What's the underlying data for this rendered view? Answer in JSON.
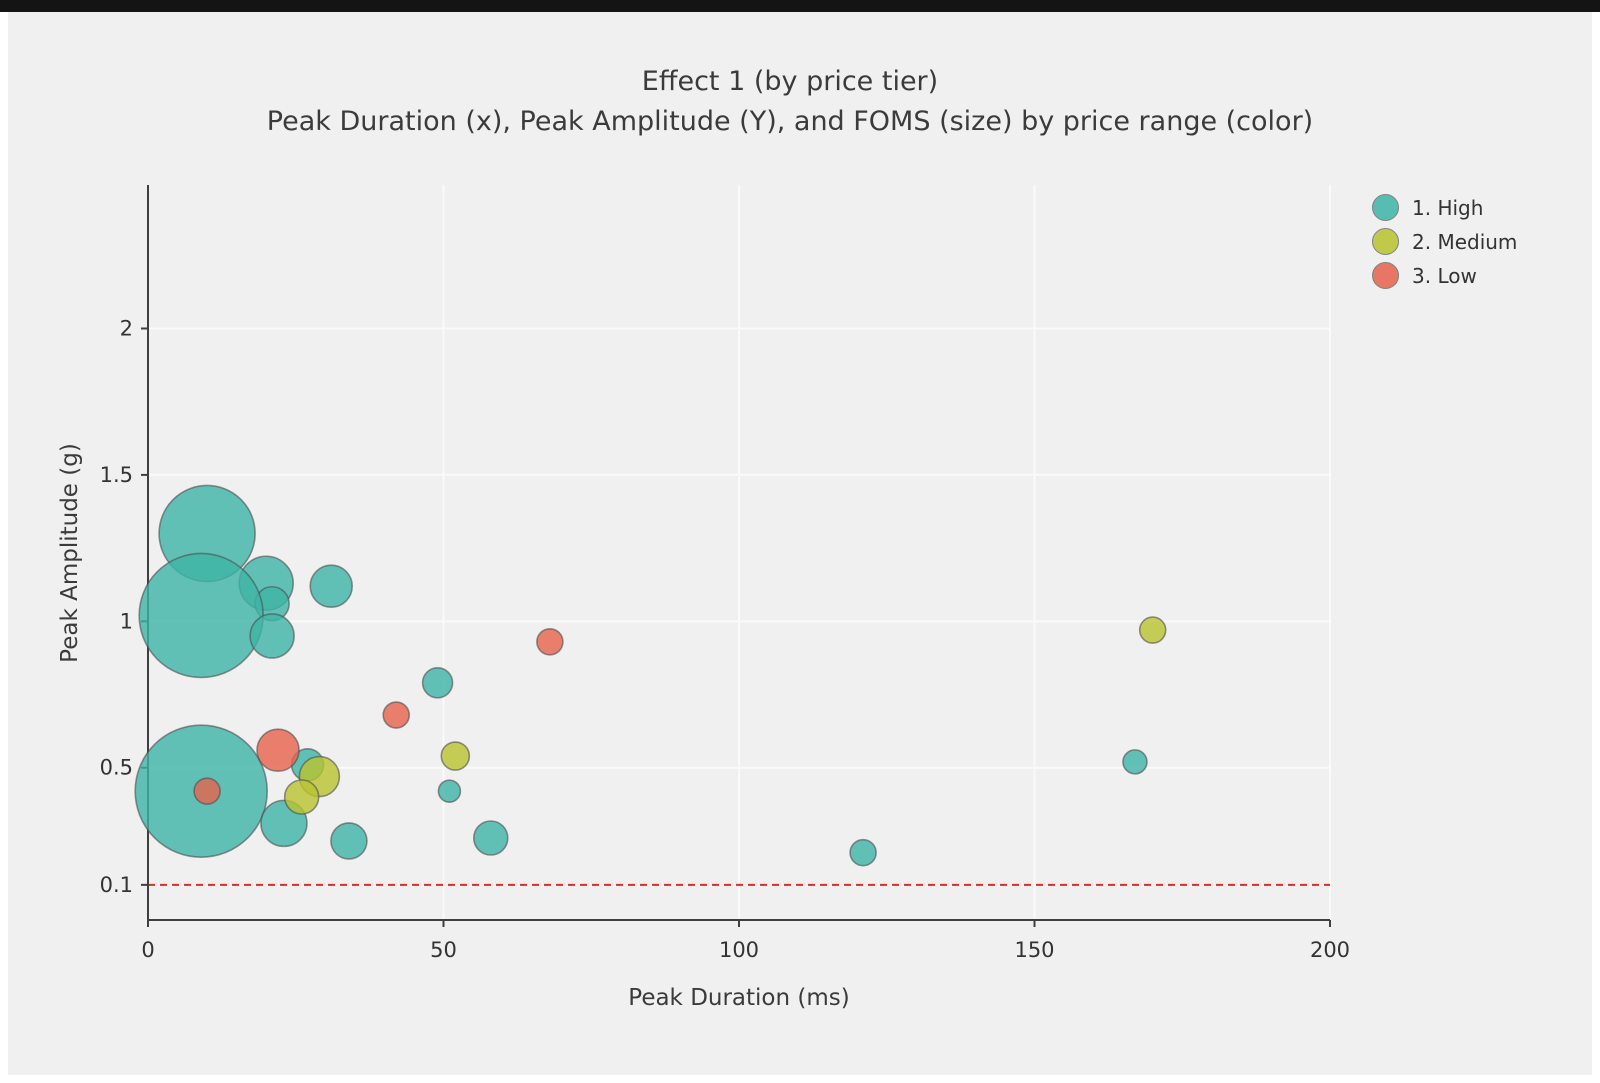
{
  "title": "Effect 1 (by price tier)",
  "subtitle": "Peak Duration (x), Peak Amplitude (Y), and FOMS (size) by price range (color)",
  "colors": {
    "background": "#f0f0f1",
    "grid": "#fafafa",
    "axis": "#3f3f3f",
    "threshold": "#d93025",
    "tier_high": "#3db4a6",
    "tier_medium": "#b9c32f",
    "tier_low": "#e7614c"
  },
  "chart_data": {
    "type": "scatter",
    "title": "Effect 1 (by price tier)",
    "subtitle": "Peak Duration (x), Peak Amplitude (Y), and FOMS (size) by price range (color)",
    "xlabel": "Peak Duration (ms)",
    "ylabel": "Peak Amplitude (g)",
    "xlim": [
      0,
      200
    ],
    "ylim": [
      -0.02,
      2.49
    ],
    "x_ticks": [
      0,
      50,
      100,
      150,
      200
    ],
    "y_ticks": [
      0.1,
      0.5,
      1,
      1.5,
      2
    ],
    "grid": true,
    "legend_position": "top-right",
    "size_encoding": "FOMS",
    "threshold_line": {
      "y": 0.1,
      "color": "#d93025",
      "style": "dashed"
    },
    "series": [
      {
        "name": "1. High",
        "color": "#3db4a6",
        "points": [
          {
            "x": 10,
            "y": 1.3,
            "r": 48
          },
          {
            "x": 20,
            "y": 1.13,
            "r": 27
          },
          {
            "x": 21,
            "y": 1.06,
            "r": 17
          },
          {
            "x": 9,
            "y": 1.02,
            "r": 62
          },
          {
            "x": 21,
            "y": 0.95,
            "r": 22
          },
          {
            "x": 31,
            "y": 1.12,
            "r": 21
          },
          {
            "x": 9,
            "y": 0.42,
            "r": 66
          },
          {
            "x": 23,
            "y": 0.31,
            "r": 23
          },
          {
            "x": 27,
            "y": 0.51,
            "r": 16
          },
          {
            "x": 34,
            "y": 0.25,
            "r": 18
          },
          {
            "x": 49,
            "y": 0.79,
            "r": 15
          },
          {
            "x": 51,
            "y": 0.42,
            "r": 11
          },
          {
            "x": 58,
            "y": 0.26,
            "r": 17
          },
          {
            "x": 121,
            "y": 0.21,
            "r": 13
          },
          {
            "x": 167,
            "y": 0.52,
            "r": 12
          }
        ]
      },
      {
        "name": "2. Medium",
        "color": "#b9c32f",
        "points": [
          {
            "x": 29,
            "y": 0.47,
            "r": 20
          },
          {
            "x": 26,
            "y": 0.4,
            "r": 17
          },
          {
            "x": 52,
            "y": 0.54,
            "r": 14
          },
          {
            "x": 170,
            "y": 0.97,
            "r": 13
          }
        ]
      },
      {
        "name": "3. Low",
        "color": "#e7614c",
        "points": [
          {
            "x": 22,
            "y": 0.56,
            "r": 21
          },
          {
            "x": 10,
            "y": 0.42,
            "r": 13
          },
          {
            "x": 42,
            "y": 0.68,
            "r": 13
          },
          {
            "x": 68,
            "y": 0.93,
            "r": 13
          }
        ]
      }
    ]
  }
}
